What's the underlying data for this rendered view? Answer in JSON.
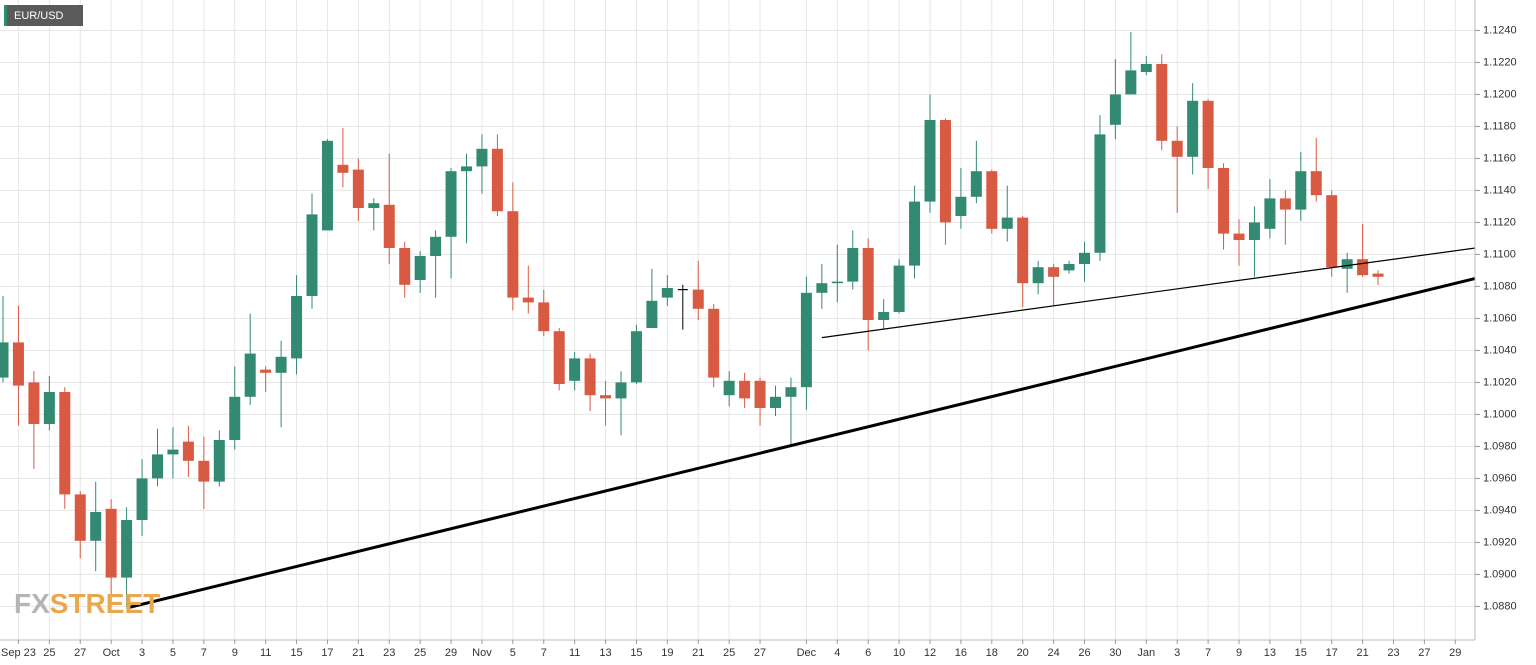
{
  "chart_data": {
    "type": "candlestick",
    "title": "EUR/USD",
    "watermark": [
      "FX",
      "STREET"
    ],
    "up_color": "#338a72",
    "down_color": "#d95a43",
    "neutral_color": "#000000",
    "grid": true,
    "categories": [
      null,
      "Sep 23",
      null,
      "25",
      null,
      "27",
      null,
      "Oct",
      null,
      "3",
      null,
      "5",
      null,
      "7",
      null,
      "9",
      null,
      "11",
      null,
      "15",
      null,
      "17",
      null,
      "21",
      null,
      "23",
      null,
      "25",
      null,
      "29",
      null,
      "Nov",
      null,
      "5",
      null,
      "7",
      null,
      "11",
      null,
      "13",
      null,
      "15",
      null,
      "19",
      null,
      "21",
      null,
      "25",
      null,
      "27",
      null,
      null,
      "Dec",
      null,
      "4",
      null,
      "6",
      null,
      "10",
      null,
      "12",
      null,
      "16",
      null,
      "18",
      null,
      "20",
      null,
      "24",
      null,
      "26",
      null,
      "30",
      null,
      "Jan",
      null,
      "3",
      null,
      "7",
      null,
      "9",
      null,
      "13",
      null,
      "15",
      null,
      "17",
      null,
      "21",
      null,
      "23",
      null,
      "27",
      null,
      "29"
    ],
    "open": [
      1.1023,
      1.1045,
      1.102,
      1.0994,
      1.1014,
      1.095,
      1.0921,
      1.0941,
      1.0898,
      1.0934,
      1.096,
      1.0975,
      1.0983,
      1.0971,
      1.0958,
      1.0984,
      1.1011,
      1.1028,
      1.1026,
      1.1035,
      1.1074,
      1.1115,
      1.1156,
      1.1153,
      1.1129,
      1.1131,
      1.1104,
      1.1084,
      1.1099,
      1.1111,
      1.1152,
      1.1155,
      1.1166,
      1.1127,
      1.1073,
      1.107,
      1.1052,
      1.1021,
      1.1035,
      1.1012,
      1.101,
      1.102,
      1.1054,
      1.1073,
      1.1078,
      1.1078,
      1.1066,
      1.1012,
      1.1021,
      1.1021,
      1.1004,
      1.1011,
      1.1017,
      1.1076,
      1.1082,
      1.1083,
      1.1104,
      1.1059,
      1.1064,
      1.1093,
      1.1133,
      1.1184,
      1.1124,
      1.1136,
      1.1152,
      1.1116,
      1.1123,
      1.1082,
      1.1092,
      1.109,
      1.1094,
      1.1101,
      1.1181,
      1.12,
      1.1214,
      1.1219,
      1.1171,
      1.1161,
      1.1196,
      1.1154,
      1.1113,
      1.1109,
      1.1116,
      1.1135,
      1.1128,
      1.1152,
      1.1137,
      1.1091,
      1.1097,
      1.1088,
      null,
      null,
      null,
      null,
      null
    ],
    "high": [
      1.1074,
      1.1068,
      1.1027,
      1.1024,
      1.1017,
      1.0952,
      1.0958,
      1.0947,
      1.0942,
      1.0972,
      1.0991,
      1.0992,
      1.0993,
      1.0986,
      1.099,
      1.103,
      1.1063,
      1.103,
      1.1046,
      1.1087,
      1.1138,
      1.1172,
      1.1179,
      1.116,
      1.1135,
      1.1163,
      1.1108,
      1.1102,
      1.1115,
      1.1154,
      1.1163,
      1.1175,
      1.1175,
      1.1145,
      1.1093,
      1.1078,
      1.1054,
      1.1039,
      1.1038,
      1.1021,
      1.1027,
      1.1056,
      1.1091,
      1.1087,
      1.1081,
      1.1096,
      1.1069,
      1.1027,
      1.1026,
      1.1023,
      1.1018,
      1.1023,
      1.1086,
      1.1094,
      1.1106,
      1.1115,
      1.111,
      1.1072,
      1.1097,
      1.1143,
      1.12,
      1.1185,
      1.1154,
      1.1171,
      1.1153,
      1.1143,
      1.1124,
      1.1096,
      1.1094,
      1.1096,
      1.1108,
      1.1187,
      1.1222,
      1.1239,
      1.1224,
      1.1225,
      1.118,
      1.1207,
      1.1197,
      1.1157,
      1.1122,
      1.113,
      1.1147,
      1.114,
      1.1164,
      1.1173,
      1.114,
      1.1101,
      1.1119,
      1.109,
      null,
      null,
      null,
      null,
      null
    ],
    "low": [
      1.102,
      1.0993,
      1.0966,
      1.099,
      1.0941,
      1.091,
      1.0902,
      1.088,
      1.088,
      1.0924,
      1.0955,
      1.096,
      1.0961,
      1.0941,
      1.0955,
      1.0978,
      1.1006,
      1.1014,
      1.0992,
      1.1025,
      1.1066,
      1.1115,
      1.1142,
      1.1121,
      1.1115,
      1.1094,
      1.1073,
      1.1076,
      1.1073,
      1.1085,
      1.1107,
      1.1138,
      1.1124,
      1.1065,
      1.1063,
      1.1049,
      1.1015,
      1.1015,
      1.1002,
      1.0993,
      1.0987,
      1.1019,
      1.1054,
      1.1068,
      1.1053,
      1.1059,
      1.1017,
      1.1005,
      1.1004,
      1.0993,
      1.0999,
      1.0981,
      1.1003,
      1.1066,
      1.107,
      1.1078,
      1.104,
      1.1053,
      1.1063,
      1.1085,
      1.1126,
      1.1106,
      1.1116,
      1.1132,
      1.1113,
      1.1108,
      1.1067,
      1.1075,
      1.1068,
      1.1088,
      1.1083,
      1.1096,
      1.1172,
      1.12,
      1.1212,
      1.1165,
      1.1126,
      1.115,
      1.1141,
      1.1103,
      1.1093,
      1.1086,
      1.111,
      1.1106,
      1.1121,
      1.1133,
      1.1086,
      1.1076,
      1.1086,
      1.1081,
      null,
      null,
      null,
      null,
      null
    ],
    "close": [
      1.1045,
      1.1018,
      1.0994,
      1.1014,
      1.095,
      1.0921,
      1.0939,
      1.0898,
      1.0934,
      1.096,
      1.0975,
      1.0978,
      1.0971,
      1.0958,
      1.0984,
      1.1011,
      1.1038,
      1.1026,
      1.1036,
      1.1074,
      1.1125,
      1.1171,
      1.1151,
      1.1129,
      1.1132,
      1.1104,
      1.1081,
      1.1099,
      1.1111,
      1.1152,
      1.1155,
      1.1166,
      1.1127,
      1.1073,
      1.107,
      1.1052,
      1.1019,
      1.1035,
      1.1012,
      1.101,
      1.102,
      1.1052,
      1.1071,
      1.1079,
      1.1078,
      1.1066,
      1.1023,
      1.1021,
      1.101,
      1.1004,
      1.1011,
      1.1017,
      1.1076,
      1.1082,
      1.1083,
      1.1104,
      1.1059,
      1.1064,
      1.1093,
      1.1133,
      1.1184,
      1.112,
      1.1136,
      1.1152,
      1.1116,
      1.1123,
      1.1082,
      1.1092,
      1.1086,
      1.1094,
      1.1101,
      1.1175,
      1.12,
      1.1215,
      1.1219,
      1.1171,
      1.1161,
      1.1196,
      1.1154,
      1.1113,
      1.1109,
      1.112,
      1.1135,
      1.1128,
      1.1152,
      1.1137,
      1.1092,
      1.1097,
      1.1087,
      1.1086,
      null,
      null,
      null,
      null,
      null
    ],
    "trendlines": [
      {
        "x": [
          8,
          95.3
        ],
        "y": [
          1.0879,
          1.1085
        ]
      },
      {
        "x": [
          53,
          95.3
        ],
        "y": [
          1.1048,
          1.1104
        ]
      }
    ],
    "ylim": [
      1.0859,
      1.1259
    ],
    "yticks": [
      {
        "value": 1.088,
        "label": "1.0880"
      },
      {
        "value": 1.09,
        "label": "1.0900"
      },
      {
        "value": 1.092,
        "label": "1.0920"
      },
      {
        "value": 1.094,
        "label": "1.0940"
      },
      {
        "value": 1.096,
        "label": "1.0960"
      },
      {
        "value": 1.098,
        "label": "1.0980"
      },
      {
        "value": 1.1,
        "label": "1.1000"
      },
      {
        "value": 1.102,
        "label": "1.1020"
      },
      {
        "value": 1.104,
        "label": "1.1040"
      },
      {
        "value": 1.106,
        "label": "1.1060"
      },
      {
        "value": 1.108,
        "label": "1.1080"
      },
      {
        "value": 1.11,
        "label": "1.1100"
      },
      {
        "value": 1.112,
        "label": "1.1120"
      },
      {
        "value": 1.114,
        "label": "1.1140"
      },
      {
        "value": 1.116,
        "label": "1.1160"
      },
      {
        "value": 1.118,
        "label": "1.1180"
      },
      {
        "value": 1.12,
        "label": "1.1200"
      },
      {
        "value": 1.122,
        "label": "1.1220"
      },
      {
        "value": 1.124,
        "label": "1.1240"
      }
    ]
  }
}
